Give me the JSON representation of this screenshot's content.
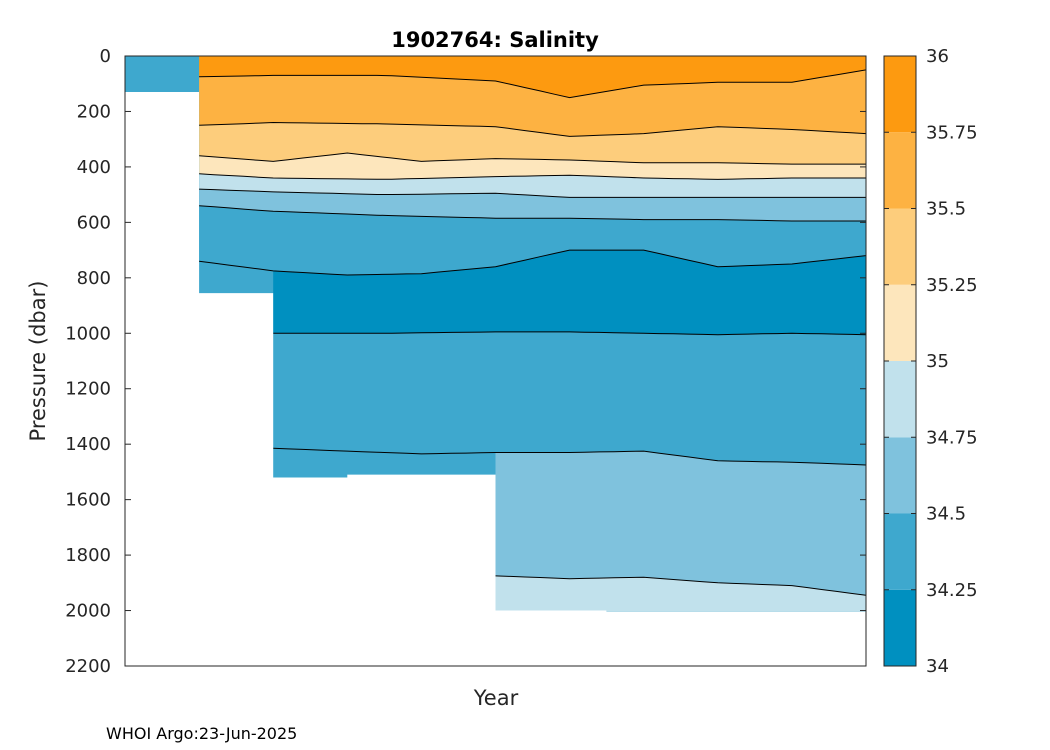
{
  "chart_data": {
    "type": "contour",
    "title": "1902764:  Salinity",
    "xlabel": "Year",
    "ylabel": "Pressure (dbar)",
    "y_reversed": true,
    "ylim": [
      0,
      2200
    ],
    "yticks": [
      0,
      200,
      400,
      600,
      800,
      1000,
      1200,
      1400,
      1600,
      1800,
      2000,
      2200
    ],
    "xlim": [
      0,
      100
    ],
    "colorbar": {
      "ticks": [
        "34",
        "34.25",
        "34.5",
        "34.75",
        "35",
        "35.25",
        "35.5",
        "35.75",
        "36"
      ],
      "levels": [
        34,
        34.25,
        34.5,
        34.75,
        35,
        35.25,
        35.5,
        35.75,
        36
      ],
      "colors": [
        "#0090C0",
        "#3EA8CE",
        "#7FC2DD",
        "#C1E1EC",
        "#FDE6BC",
        "#FDCD7C",
        "#FDB242",
        "#FD9A10"
      ]
    },
    "profile_max_depth": [
      {
        "x": 0,
        "depth": 130
      },
      {
        "x": 10,
        "depth": 855
      },
      {
        "x": 20,
        "depth": 1520
      },
      {
        "x": 30,
        "depth": 1510
      },
      {
        "x": 50,
        "depth": 2000
      },
      {
        "x": 65,
        "depth": 2005
      },
      {
        "x": 80,
        "depth": 2005
      },
      {
        "x": 100,
        "depth": 2000
      }
    ],
    "contours": [
      {
        "level": 35.75,
        "x": [
          10,
          20,
          35,
          50,
          60,
          70,
          80,
          90,
          100
        ],
        "depth": [
          75,
          70,
          70,
          90,
          150,
          105,
          95,
          95,
          50
        ]
      },
      {
        "level": 35.5,
        "x": [
          10,
          20,
          35,
          50,
          60,
          70,
          80,
          90,
          100
        ],
        "depth": [
          250,
          240,
          245,
          255,
          290,
          280,
          255,
          265,
          280
        ]
      },
      {
        "level": 35.25,
        "x": [
          10,
          20,
          30,
          40,
          50,
          60,
          70,
          80,
          90,
          100
        ],
        "depth": [
          360,
          380,
          350,
          380,
          370,
          375,
          385,
          385,
          390,
          390
        ]
      },
      {
        "level": 35,
        "x": [
          10,
          20,
          35,
          50,
          60,
          70,
          80,
          90,
          100
        ],
        "depth": [
          425,
          440,
          445,
          435,
          430,
          440,
          445,
          440,
          440
        ]
      },
      {
        "level": 34.75,
        "x": [
          10,
          20,
          35,
          50,
          60,
          70,
          80,
          90,
          100
        ],
        "depth": [
          480,
          490,
          500,
          495,
          510,
          510,
          510,
          510,
          510
        ]
      },
      {
        "level": 34.5,
        "x": [
          10,
          20,
          35,
          50,
          60,
          70,
          80,
          90,
          100
        ],
        "depth": [
          540,
          560,
          575,
          585,
          585,
          590,
          590,
          595,
          595
        ]
      },
      {
        "level": 34.25,
        "x": [
          10,
          20,
          30,
          40,
          50,
          60,
          70,
          80,
          90,
          100
        ],
        "depth": [
          740,
          775,
          790,
          785,
          760,
          700,
          700,
          760,
          750,
          720
        ]
      },
      {
        "level": 34.25,
        "x": [
          20,
          35,
          50,
          60,
          70,
          80,
          90,
          100
        ],
        "depth": [
          1000,
          1000,
          995,
          995,
          1000,
          1005,
          1000,
          1005
        ]
      },
      {
        "level": 34.5,
        "x": [
          20,
          30,
          40,
          50,
          60,
          70,
          80,
          90,
          100
        ],
        "depth": [
          1415,
          1425,
          1435,
          1430,
          1430,
          1425,
          1460,
          1465,
          1475
        ]
      },
      {
        "level": 34.75,
        "x": [
          50,
          60,
          70,
          80,
          90,
          100
        ],
        "depth": [
          1875,
          1885,
          1880,
          1900,
          1910,
          1945
        ]
      }
    ]
  },
  "footer": "WHOI Argo:23-Jun-2025"
}
